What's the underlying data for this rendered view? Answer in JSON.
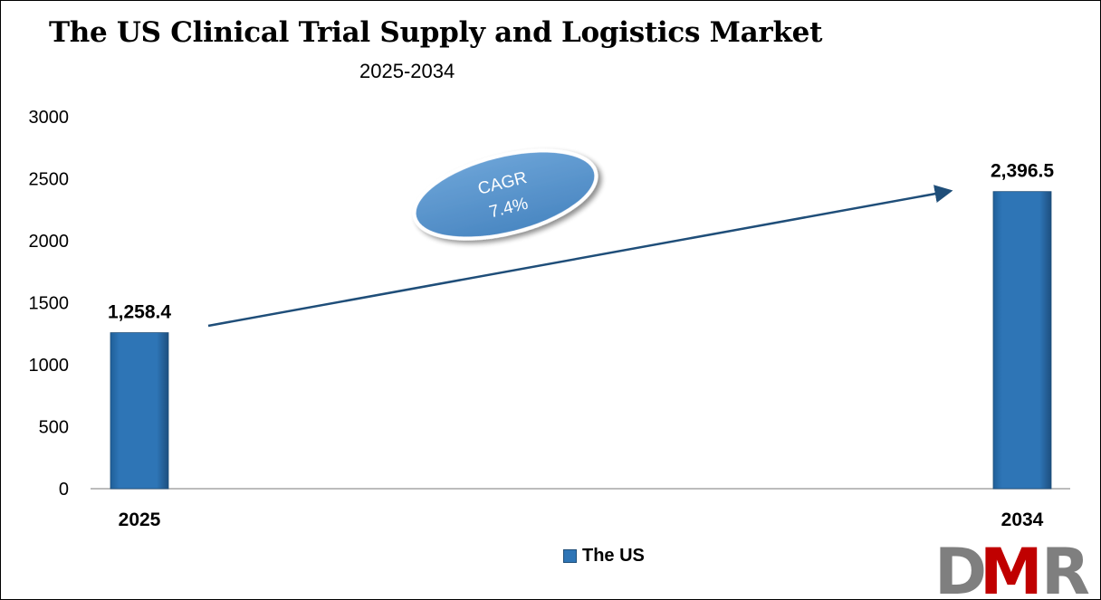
{
  "chart_data": {
    "type": "bar",
    "title": "The US Clinical Trial Supply and Logistics Market",
    "subtitle": "2025-2034",
    "categories": [
      "2025",
      "2034"
    ],
    "series": [
      {
        "name": "The US",
        "values": [
          1258.4,
          2396.5
        ]
      }
    ],
    "data_labels": [
      "1,258.4",
      "2,396.5"
    ],
    "ylim": [
      0,
      3000
    ],
    "y_ticks": [
      0,
      500,
      1000,
      1500,
      2000,
      2500,
      3000
    ],
    "grid": false,
    "legend_position": "bottom",
    "annotation": {
      "label": "CAGR",
      "value": "7.4%"
    },
    "bar_color": "#2e75b6"
  },
  "logo": {
    "text": "DMR",
    "colors": [
      "#7f7f7f",
      "#c00000"
    ]
  }
}
